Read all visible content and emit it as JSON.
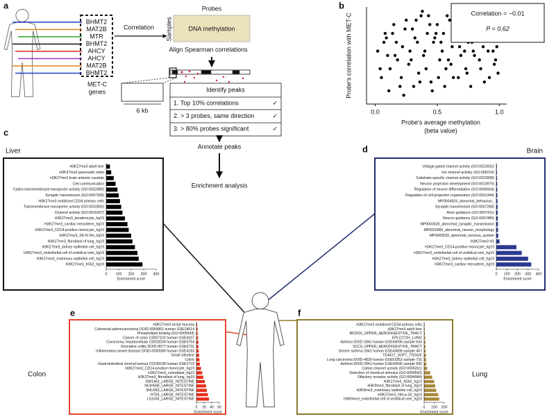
{
  "panel_labels": [
    "a",
    "b",
    "c",
    "d",
    "e",
    "f"
  ],
  "panel_a": {
    "genes": [
      {
        "label": "BHMT2",
        "color": "#1f3fbf"
      },
      {
        "label": "MAT2B",
        "color": "#e8811a"
      },
      {
        "label": "MTR",
        "color": "#2ca02c"
      },
      {
        "label": "BHMT2",
        "color": "#111111"
      },
      {
        "label": "AHCY",
        "color": "#e02020"
      },
      {
        "label": "AHCY",
        "color": "#9b30d0"
      },
      {
        "label": "MAT2B",
        "color": "#e8811a"
      },
      {
        "label": "BHMT2",
        "color": "#1f3fbf"
      }
    ],
    "genes_title": [
      "MET-C",
      "genes"
    ],
    "correlation": "Correlation",
    "probes": "Probes",
    "samples": "Samples",
    "heatmap_label": "DNA methylation",
    "align": "Align Spearman correlations",
    "scale": "6 kb",
    "peaks_title": "Identify peaks",
    "steps": [
      {
        "text": "1.  Top 10% correlations",
        "check": "✓"
      },
      {
        "text": "2.  > 3 probes, same direction",
        "check": "✓"
      },
      {
        "text": "3.  > 80% probes significant",
        "check": "✓"
      }
    ],
    "annotate": "Annotate peaks",
    "enrichment": "Enrichment analysis"
  },
  "chart_data": [
    {
      "type": "scatter",
      "ylabel": "Probe's correlation with MET-C",
      "xlabel": [
        "Probe's average methylation",
        "(beta value)"
      ],
      "annotations": [
        "Correlation = −0.01",
        "P = 0.62"
      ],
      "color": "#000000",
      "xlim": [
        -0.07,
        1.06
      ],
      "xticks": [
        {
          "value": 0,
          "label": "0.0"
        },
        0.5,
        {
          "value": 1,
          "label": "1.0"
        }
      ],
      "ylim": [
        -0.5,
        0.6
      ],
      "x": [
        0.02,
        0.05,
        0.08,
        0.1,
        0.12,
        0.15,
        0.17,
        0.2,
        0.22,
        0.25,
        0.27,
        0.3,
        0.32,
        0.35,
        0.37,
        0.4,
        0.42,
        0.45,
        0.47,
        0.5,
        0.52,
        0.55,
        0.57,
        0.6,
        0.62,
        0.65,
        0.67,
        0.7,
        0.72,
        0.75,
        0.77,
        0.8,
        0.82,
        0.85,
        0.87,
        0.9,
        0.92,
        0.95,
        0.97,
        0.99,
        0.04,
        0.07,
        0.11,
        0.14,
        0.18,
        0.21,
        0.24,
        0.28,
        0.31,
        0.34,
        0.38,
        0.41,
        0.44,
        0.48,
        0.51,
        0.54,
        0.58,
        0.61,
        0.64,
        0.68,
        0.71,
        0.74,
        0.78,
        0.81,
        0.84,
        0.88,
        0.91,
        0.94,
        0.96,
        0.98,
        0.09,
        0.16,
        0.23,
        0.29,
        0.33,
        0.36,
        0.39,
        0.43,
        0.46,
        0.49,
        0.53,
        0.56,
        0.59,
        0.63,
        0.66,
        0.69,
        0.73,
        0.76,
        0.79,
        0.86
      ],
      "y": [
        0.1,
        -0.2,
        0.3,
        0.05,
        -0.1,
        0.4,
        0.2,
        -0.3,
        0.15,
        0.45,
        -0.05,
        0.35,
        0.25,
        -0.15,
        0.5,
        0.1,
        0.3,
        -0.25,
        0.2,
        0.4,
        0.0,
        0.3,
        -0.1,
        0.45,
        0.15,
        0.25,
        -0.2,
        0.35,
        0.1,
        0.2,
        -0.3,
        0.05,
        0.3,
        -0.1,
        0.15,
        0.25,
        -0.2,
        0.1,
        0.0,
        -0.15,
        -0.1,
        0.2,
        -0.35,
        0.3,
        0.0,
        -0.2,
        0.35,
        0.1,
        -0.3,
        0.2,
        0.55,
        -0.1,
        0.4,
        0.25,
        -0.2,
        0.1,
        0.5,
        -0.05,
        0.3,
        0.15,
        0.4,
        -0.15,
        0.2,
        0.35,
        0.0,
        -0.25,
        0.1,
        0.3,
        -0.05,
        0.15,
        0.25,
        0.05,
        -0.4,
        0.0,
        0.45,
        -0.25,
        0.05,
        0.5,
        -0.35,
        0.3,
        0.2,
        -0.3,
        0.0,
        -0.2,
        0.45,
        0.05,
        -0.1,
        0.3,
        0.1,
        0.4
      ]
    },
    {
      "type": "barh",
      "title": "Liver",
      "color": "#000000",
      "xlabel": "Enrichment score",
      "xlim": [
        0,
        400
      ],
      "xticks": [
        0,
        100,
        200,
        300,
        400
      ],
      "categories": [
        "H3K27me3 adult liver",
        "H3K27me3 pancreatic islets",
        "H3K27me3 brain anterior caudate",
        "Cell communication",
        "Cation transmembrane transporter activity (GO:0022890)",
        "Synaptic transmission (GO:0007268)",
        "H3K27me3 mobilized CD34 primary cells",
        "Transmembrane transporter activity (GO:0022803)",
        "Channel activity (GO:0015267)",
        "H3K27me3_keratinocyte_hg19",
        "H3K27me3_cardiac mesoderm_hg19",
        "H3K27me3_CD14-positive monocyte_hg19",
        "H3K27me3_SK-N-SH_hg19",
        "H3K27me3_fibroblast of lung_hg19",
        "H3K27me3_kidney epithelial cell_hg19",
        "H3K27me3_endothelial cell of umbilical vein_hg19",
        "H3K27me3_mammary epithelial cell_hg19",
        "H3K27me3_K562_hg19"
      ],
      "values": [
        30,
        40,
        60,
        75,
        90,
        100,
        110,
        120,
        130,
        150,
        170,
        180,
        200,
        210,
        230,
        250,
        260,
        290
      ]
    },
    {
      "type": "barh",
      "title": "Brain",
      "color": "#2b3990",
      "xlabel": "Enrichment score",
      "xlim": [
        0,
        400
      ],
      "xticks": [
        0,
        100,
        200,
        300,
        400
      ],
      "categories": [
        "Voltage-gated channel activity (GO:0022832)",
        "Ion channel activity (GO:005216)",
        "Substrate-specific channel activity (GO:0022838)",
        "Neuron projection development (GO:0010975)",
        "Regulation of neuron differentiation (GO:0045664)",
        "Regulation of cell projection organization (GO:0031344)",
        "MP0004924_abnormal_behaviour_",
        "Synaptic transmission (GO:0007268)",
        "Axon guidance (GO:0007411)",
        "Neuron guidance (GO:0097485)",
        "MP0003635_abnormal_synaptic_transmission",
        "MP0002882_abnormal_neuron_morphology",
        "MP0003633_abnormal_nervous_system",
        "H3K27me3 H1",
        "H3K27me3_CD14-positive monocyte_hg19",
        "H3K27me3_endothelial cell of umbilical vein_hg19",
        "H3K27me3_kidney epithelial cell_hg19",
        "H3K27me3_cardiac mesoderm_hg19"
      ],
      "values": [
        5,
        6,
        7,
        8,
        9,
        10,
        11,
        12,
        13,
        14,
        15,
        16,
        18,
        30,
        190,
        240,
        300,
        330
      ]
    },
    {
      "type": "barh",
      "title": "Colon",
      "color": "#e8301c",
      "xlabel": "Enrichment score",
      "xlim": [
        0,
        60
      ],
      "xticks": [
        0,
        20,
        40,
        60
      ],
      "categories": [
        "H3K27me3 rectal mucosa",
        "Colorectal adenocarcinoma DOID-0050861 human GSE24514",
        "Phospholipid binding (GO:0005543)",
        "Cancer of colon C0007102 human GSE4107",
        "Carcinoma, hepatocellular C0018204 human GSE6764",
        "Ulcerative colitis DOID-8577 human GSE6731",
        "Inflammatory bowel disease DOID-0050589 human GSE4183",
        "Small intestine",
        "Colon",
        "Gastrointestinal stromal tumour C0238198 human GSE2719",
        "H3K27me3_CD14-positive monocyte_hg19",
        "H3K27me3_osteoblast_hg19",
        "H3K27me3_fibroblast of lung_hg19",
        "SW1463_LARGE_INTESTINE",
        "NCIH508_LARGE_INTESTINE",
        "SNU283_LARGE_INTESTINE",
        "HT55_LARGE_INTESTINE",
        "LS1034_LARGE_INTESTINE"
      ],
      "values": [
        2,
        3,
        3,
        4,
        5,
        5,
        6,
        7,
        8,
        9,
        12,
        15,
        18,
        22,
        25,
        27,
        30,
        33
      ]
    },
    {
      "type": "barh",
      "title": "Lung",
      "color": "#a8893a",
      "xlabel": "Enrichment score",
      "xlim": [
        0,
        200
      ],
      "xticks": [
        0,
        100,
        200
      ],
      "categories": [
        "H3K27me3 mobilized CD34 primary cells",
        "H3K27me3 adult liver",
        "BICR16_UPPER_AERODIGESTIVE_TRACT",
        "EPLC272H_LUNG",
        "Asthma DOID-2841 human GSE43696 sample 634",
        "SCC9_UPPER_AERODIGESTIVE_TRACT",
        "Severe asthma 2841 human GSE43696 sample 467",
        "TE441T_SOFT_TISSUE",
        "Lung carcinoma DOID-4829 human GSE51852 sample 731",
        "Asthma DOID-2841 human GSE43696 sample 830",
        "Cation channel activity (GO:0005261)",
        "Detection of chemical stimulus (GO:0009593)",
        "Olfactory receptor activity (GO:0004984)",
        "H3K27me3_K562_hg19",
        "H3K9me3_fibroblast of lung_hg19",
        "H3K9me3_mammary epithelial cell_hg19",
        "H3K27me3_HeLa-S3_hg19",
        "H3K9me3_endothelial cell of umbilical vein_hg19"
      ],
      "values": [
        5,
        6,
        8,
        10,
        12,
        14,
        16,
        18,
        20,
        22,
        30,
        60,
        80,
        100,
        110,
        120,
        140,
        150
      ]
    }
  ]
}
